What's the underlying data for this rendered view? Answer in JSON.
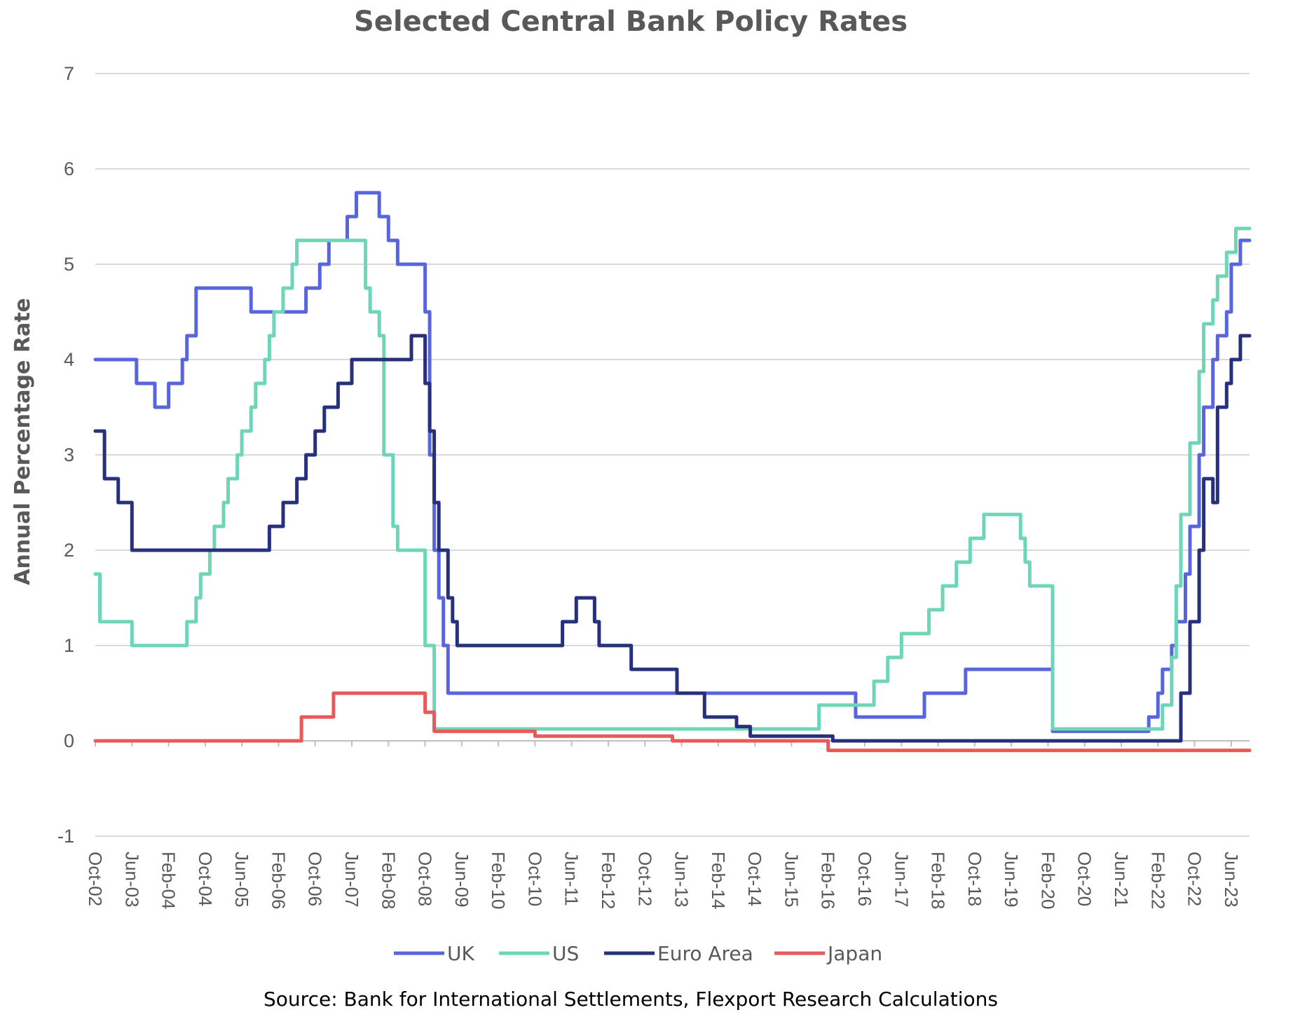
{
  "chart_data": {
    "type": "line",
    "title": "Selected Central Bank Policy Rates",
    "ylabel": "Annual Percentage Rate",
    "xlabel": "",
    "ylim": [
      -1,
      7
    ],
    "yticks": [
      -1,
      0,
      1,
      2,
      3,
      4,
      5,
      6,
      7
    ],
    "grid": true,
    "legend": "bottom",
    "source": "Source: Bank for International Settlements, Flexport Research Calculations",
    "x_start": "Oct-02",
    "x_end": "Oct-23",
    "x_ticks": [
      "Oct-02",
      "Jun-03",
      "Feb-04",
      "Oct-04",
      "Jun-05",
      "Feb-06",
      "Oct-06",
      "Jun-07",
      "Feb-08",
      "Oct-08",
      "Jun-09",
      "Feb-10",
      "Oct-10",
      "Jun-11",
      "Feb-12",
      "Oct-12",
      "Jun-13",
      "Feb-14",
      "Oct-14",
      "Jun-15",
      "Feb-16",
      "Oct-16",
      "Jun-17",
      "Feb-18",
      "Oct-18",
      "Jun-19",
      "Feb-20",
      "Oct-20",
      "Jun-21",
      "Feb-22",
      "Oct-22",
      "Jun-23"
    ],
    "series": [
      {
        "name": "UK",
        "color": "#5965DC",
        "points": [
          [
            "Oct-02",
            4
          ],
          [
            "Jul-03",
            3.75
          ],
          [
            "Nov-03",
            3.5
          ],
          [
            "Feb-04",
            3.75
          ],
          [
            "May-04",
            4
          ],
          [
            "Jun-04",
            4.25
          ],
          [
            "Aug-04",
            4.75
          ],
          [
            "Aug-05",
            4.5
          ],
          [
            "Aug-06",
            4.75
          ],
          [
            "Nov-06",
            5
          ],
          [
            "Jan-07",
            5.25
          ],
          [
            "May-07",
            5.5
          ],
          [
            "Jul-07",
            5.75
          ],
          [
            "Dec-07",
            5.5
          ],
          [
            "Feb-08",
            5.25
          ],
          [
            "Apr-08",
            5
          ],
          [
            "Oct-08",
            4.5
          ],
          [
            "Nov-08",
            3
          ],
          [
            "Dec-08",
            2
          ],
          [
            "Jan-09",
            1.5
          ],
          [
            "Feb-09",
            1
          ],
          [
            "Mar-09",
            0.5
          ],
          [
            "Aug-16",
            0.25
          ],
          [
            "Nov-17",
            0.5
          ],
          [
            "Aug-18",
            0.75
          ],
          [
            "Mar-20",
            0.1
          ],
          [
            "Dec-21",
            0.25
          ],
          [
            "Feb-22",
            0.5
          ],
          [
            "Mar-22",
            0.75
          ],
          [
            "May-22",
            1
          ],
          [
            "Jun-22",
            1.25
          ],
          [
            "Aug-22",
            1.75
          ],
          [
            "Sep-22",
            2.25
          ],
          [
            "Nov-22",
            3
          ],
          [
            "Dec-22",
            3.5
          ],
          [
            "Feb-23",
            4
          ],
          [
            "Mar-23",
            4.25
          ],
          [
            "May-23",
            4.5
          ],
          [
            "Jun-23",
            5
          ],
          [
            "Aug-23",
            5.25
          ],
          [
            "Oct-23",
            5.25
          ]
        ]
      },
      {
        "name": "US",
        "color": "#6ED5B8",
        "points": [
          [
            "Oct-02",
            1.75
          ],
          [
            "Nov-02",
            1.25
          ],
          [
            "Jun-03",
            1
          ],
          [
            "Jun-04",
            1.25
          ],
          [
            "Aug-04",
            1.5
          ],
          [
            "Sep-04",
            1.75
          ],
          [
            "Nov-04",
            2
          ],
          [
            "Dec-04",
            2.25
          ],
          [
            "Feb-05",
            2.5
          ],
          [
            "Mar-05",
            2.75
          ],
          [
            "May-05",
            3
          ],
          [
            "Jun-05",
            3.25
          ],
          [
            "Aug-05",
            3.5
          ],
          [
            "Sep-05",
            3.75
          ],
          [
            "Nov-05",
            4
          ],
          [
            "Dec-05",
            4.25
          ],
          [
            "Jan-06",
            4.5
          ],
          [
            "Mar-06",
            4.75
          ],
          [
            "May-06",
            5
          ],
          [
            "Jun-06",
            5.25
          ],
          [
            "Sep-07",
            4.75
          ],
          [
            "Oct-07",
            4.5
          ],
          [
            "Dec-07",
            4.25
          ],
          [
            "Jan-08",
            3
          ],
          [
            "Mar-08",
            2.25
          ],
          [
            "Apr-08",
            2
          ],
          [
            "Oct-08",
            1
          ],
          [
            "Dec-08",
            0.125
          ],
          [
            "Dec-15",
            0.375
          ],
          [
            "Dec-16",
            0.625
          ],
          [
            "Mar-17",
            0.875
          ],
          [
            "Jun-17",
            1.125
          ],
          [
            "Dec-17",
            1.375
          ],
          [
            "Mar-18",
            1.625
          ],
          [
            "Jun-18",
            1.875
          ],
          [
            "Sep-18",
            2.125
          ],
          [
            "Dec-18",
            2.375
          ],
          [
            "Aug-19",
            2.125
          ],
          [
            "Sep-19",
            1.875
          ],
          [
            "Oct-19",
            1.625
          ],
          [
            "Mar-20",
            0.125
          ],
          [
            "Mar-22",
            0.375
          ],
          [
            "May-22",
            0.875
          ],
          [
            "Jun-22",
            1.625
          ],
          [
            "Jul-22",
            2.375
          ],
          [
            "Sep-22",
            3.125
          ],
          [
            "Nov-22",
            3.875
          ],
          [
            "Dec-22",
            4.375
          ],
          [
            "Feb-23",
            4.625
          ],
          [
            "Mar-23",
            4.875
          ],
          [
            "May-23",
            5.125
          ],
          [
            "Jul-23",
            5.375
          ],
          [
            "Oct-23",
            5.375
          ]
        ]
      },
      {
        "name": "Euro Area",
        "color": "#27307A",
        "points": [
          [
            "Oct-02",
            3.25
          ],
          [
            "Dec-02",
            2.75
          ],
          [
            "Mar-03",
            2.5
          ],
          [
            "Jun-03",
            2
          ],
          [
            "Dec-05",
            2.25
          ],
          [
            "Mar-06",
            2.5
          ],
          [
            "Jun-06",
            2.75
          ],
          [
            "Aug-06",
            3
          ],
          [
            "Oct-06",
            3.25
          ],
          [
            "Dec-06",
            3.5
          ],
          [
            "Mar-07",
            3.75
          ],
          [
            "Jun-07",
            4
          ],
          [
            "Jul-08",
            4.25
          ],
          [
            "Oct-08",
            3.75
          ],
          [
            "Nov-08",
            3.25
          ],
          [
            "Dec-08",
            2.5
          ],
          [
            "Jan-09",
            2
          ],
          [
            "Mar-09",
            1.5
          ],
          [
            "Apr-09",
            1.25
          ],
          [
            "May-09",
            1
          ],
          [
            "Apr-11",
            1.25
          ],
          [
            "Jul-11",
            1.5
          ],
          [
            "Nov-11",
            1.25
          ],
          [
            "Dec-11",
            1
          ],
          [
            "Jul-12",
            0.75
          ],
          [
            "May-13",
            0.5
          ],
          [
            "Nov-13",
            0.25
          ],
          [
            "Jun-14",
            0.15
          ],
          [
            "Sep-14",
            0.05
          ],
          [
            "Mar-16",
            0
          ],
          [
            "Jul-22",
            0.5
          ],
          [
            "Sep-22",
            1.25
          ],
          [
            "Nov-22",
            2
          ],
          [
            "Dec-22",
            2.75
          ],
          [
            "Feb-23",
            2.5
          ],
          [
            "Mar-23",
            3.5
          ],
          [
            "May-23",
            3.75
          ],
          [
            "Jun-23",
            4
          ],
          [
            "Aug-23",
            4.25
          ],
          [
            "Oct-23",
            4.25
          ]
        ]
      },
      {
        "name": "Japan",
        "color": "#E8595A",
        "points": [
          [
            "Oct-02",
            0
          ],
          [
            "Jul-06",
            0.25
          ],
          [
            "Feb-07",
            0.5
          ],
          [
            "Oct-08",
            0.3
          ],
          [
            "Dec-08",
            0.1
          ],
          [
            "Oct-10",
            0.05
          ],
          [
            "Apr-13",
            0
          ],
          [
            "Feb-16",
            -0.1
          ],
          [
            "Oct-23",
            -0.1
          ]
        ]
      }
    ]
  }
}
